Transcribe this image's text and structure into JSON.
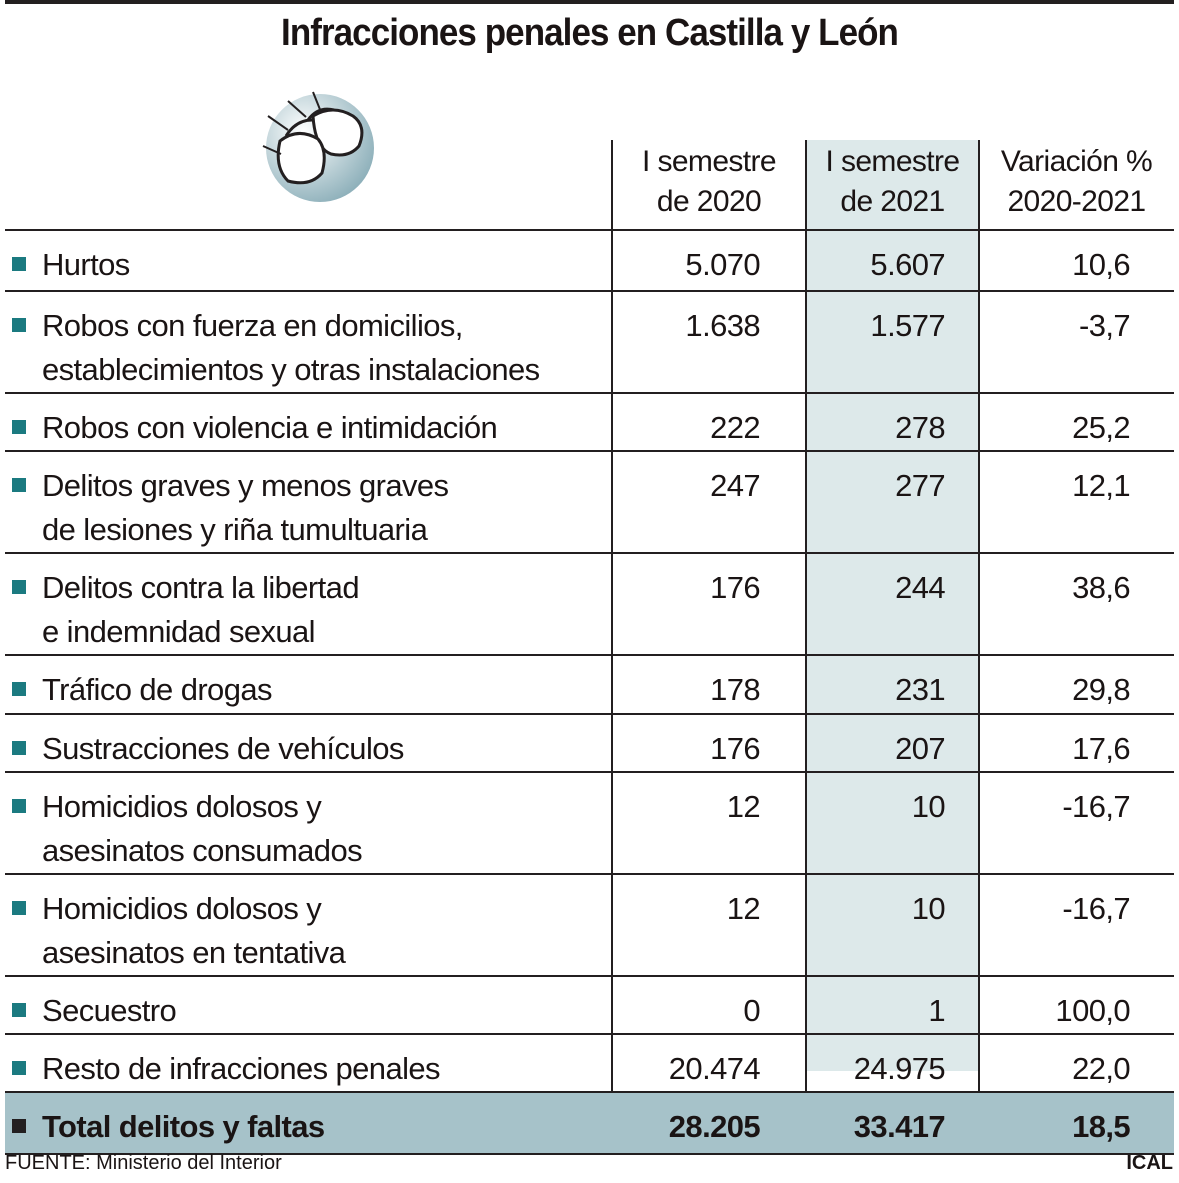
{
  "title": "Infracciones penales en Castilla y León",
  "icon": "handcuffed-fists-icon",
  "colors": {
    "bullet": "#1b7a80",
    "highlight_column": "#dde9ea",
    "total_row": "#a6c2c9"
  },
  "chart_data": {
    "type": "table",
    "title": "Infracciones penales en Castilla y León",
    "columns": [
      {
        "lines": [
          "I semestre",
          "de 2020"
        ]
      },
      {
        "lines": [
          "I semestre",
          "de 2021"
        ]
      },
      {
        "lines": [
          "Variación %",
          "2020-2021"
        ]
      }
    ],
    "rows": [
      {
        "label": [
          "Hurtos"
        ],
        "v2020": "5.070",
        "v2021": "5.607",
        "var": "10,6"
      },
      {
        "label": [
          "Robos con fuerza en domicilios,",
          "establecimientos y otras instalaciones"
        ],
        "v2020": "1.638",
        "v2021": "1.577",
        "var": "-3,7"
      },
      {
        "label": [
          "Robos con violencia e intimidación"
        ],
        "v2020": "222",
        "v2021": "278",
        "var": "25,2"
      },
      {
        "label": [
          "Delitos graves y menos graves",
          "de lesiones y riña tumultuaria"
        ],
        "v2020": "247",
        "v2021": "277",
        "var": "12,1"
      },
      {
        "label": [
          "Delitos contra la libertad",
          "e indemnidad sexual"
        ],
        "v2020": "176",
        "v2021": "244",
        "var": "38,6"
      },
      {
        "label": [
          "Tráfico de drogas"
        ],
        "v2020": "178",
        "v2021": "231",
        "var": "29,8"
      },
      {
        "label": [
          "Sustracciones de vehículos"
        ],
        "v2020": "176",
        "v2021": "207",
        "var": "17,6"
      },
      {
        "label": [
          "Homicidios dolosos y",
          "asesinatos consumados"
        ],
        "v2020": "12",
        "v2021": "10",
        "var": "-16,7"
      },
      {
        "label": [
          "Homicidios dolosos y",
          "asesinatos en tentativa"
        ],
        "v2020": "12",
        "v2021": "10",
        "var": "-16,7"
      },
      {
        "label": [
          "Secuestro"
        ],
        "v2020": "0",
        "v2021": "1",
        "var": "100,0"
      },
      {
        "label": [
          "Resto de infracciones penales"
        ],
        "v2020": "20.474",
        "v2021": "24.975",
        "var": "22,0"
      }
    ],
    "total": {
      "label": [
        "Total delitos y faltas"
      ],
      "v2020": "28.205",
      "v2021": "33.417",
      "var": "18,5"
    }
  },
  "footer": {
    "source": "FUENTE: Ministerio del Interior",
    "credit": "ICAL"
  }
}
